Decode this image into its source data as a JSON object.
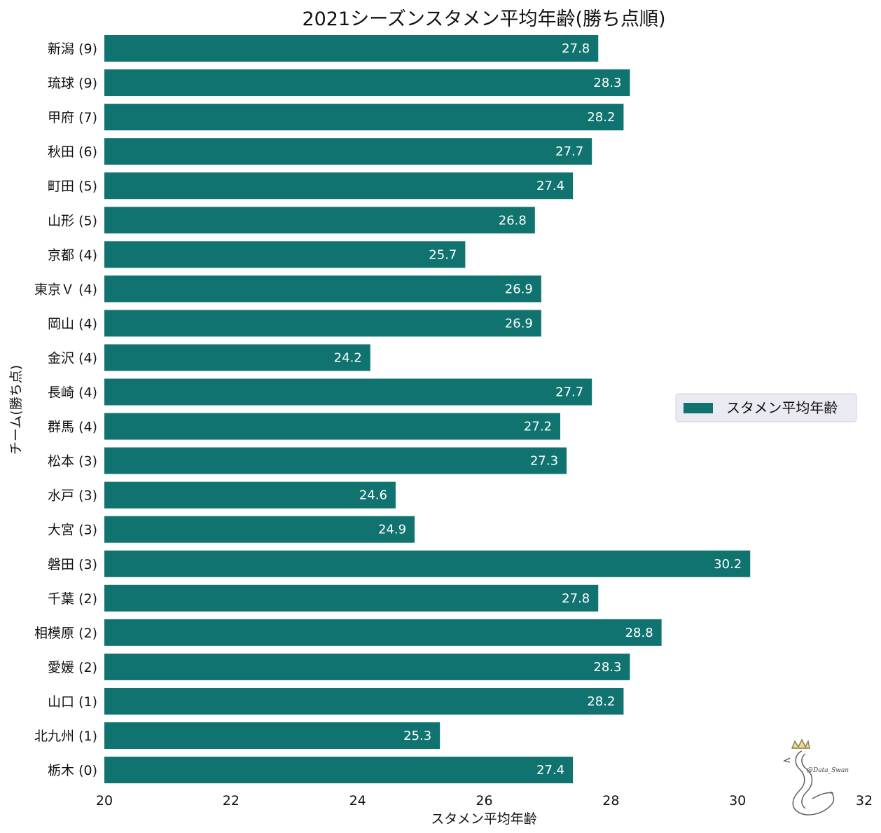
{
  "chart_data": {
    "type": "bar",
    "orientation": "horizontal",
    "title": "2021シーズンスタメン平均年齢(勝ち点順)",
    "xlabel": "スタメン平均年齢",
    "ylabel": "チーム(勝ち点)",
    "xlim": [
      20,
      32
    ],
    "xticks": [
      "20",
      "22",
      "24",
      "26",
      "28",
      "30",
      "32"
    ],
    "categories": [
      "新潟 (9)",
      "琉球 (9)",
      "甲府 (7)",
      "秋田 (6)",
      "町田 (5)",
      "山形 (5)",
      "京都 (4)",
      "東京Ｖ (4)",
      "岡山 (4)",
      "金沢 (4)",
      "長崎 (4)",
      "群馬 (4)",
      "松本 (3)",
      "水戸 (3)",
      "大宮 (3)",
      "磐田 (3)",
      "千葉 (2)",
      "相模原 (2)",
      "愛媛 (2)",
      "山口 (1)",
      "北九州 (1)",
      "栃木 (0)"
    ],
    "series": [
      {
        "name": "スタメン平均年齢",
        "color": "#10736f",
        "values": [
          27.8,
          28.3,
          28.2,
          27.7,
          27.4,
          26.8,
          25.7,
          26.9,
          26.9,
          24.2,
          27.7,
          27.2,
          27.3,
          24.6,
          24.9,
          30.2,
          27.8,
          28.8,
          28.3,
          28.2,
          25.3,
          27.4
        ],
        "labels": [
          "27.8",
          "28.3",
          "28.2",
          "27.7",
          "27.4",
          "26.8",
          "25.7",
          "26.9",
          "26.9",
          "24.2",
          "27.7",
          "27.2",
          "27.3",
          "24.6",
          "24.9",
          "30.2",
          "27.8",
          "28.8",
          "28.3",
          "28.2",
          "25.3",
          "27.4"
        ]
      }
    ],
    "legend": {
      "label": "スタメン平均年齢",
      "position": "right"
    },
    "grid": false
  },
  "watermark": {
    "text": "@Data_Swan",
    "icon": "swan-icon"
  }
}
